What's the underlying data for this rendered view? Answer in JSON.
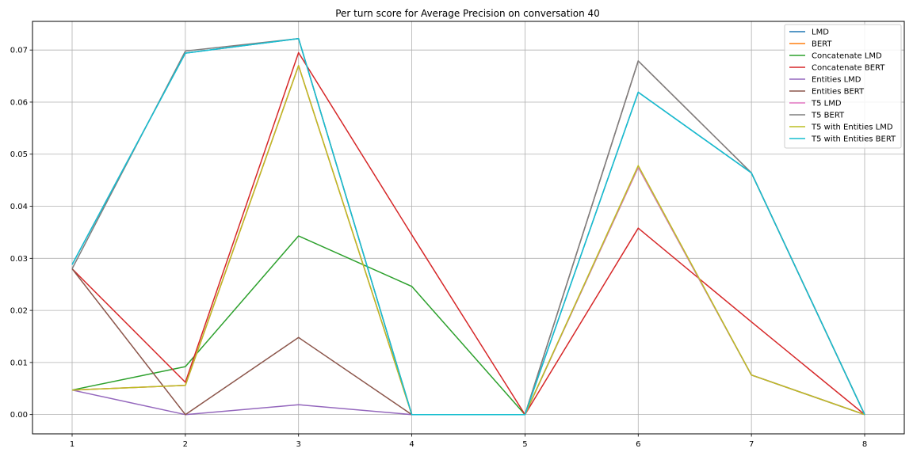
{
  "chart_data": {
    "type": "line",
    "title": "Per turn score for Average Precision on conversation 40",
    "xlabel": "",
    "ylabel": "",
    "x": [
      1,
      2,
      3,
      4,
      5,
      6,
      7,
      8
    ],
    "xlim": [
      0.65,
      8.35
    ],
    "ylim": [
      -0.0037,
      0.0755
    ],
    "x_ticks": [
      1,
      2,
      3,
      4,
      5,
      6,
      7,
      8
    ],
    "y_ticks": [
      0.0,
      0.01,
      0.02,
      0.03,
      0.04,
      0.05,
      0.06,
      0.07
    ],
    "y_tick_labels": [
      "0.00",
      "0.01",
      "0.02",
      "0.03",
      "0.04",
      "0.05",
      "0.06",
      "0.07"
    ],
    "grid": true,
    "legend_position": "top-right",
    "series": [
      {
        "name": "LMD",
        "color": "#1f77b4",
        "values": [
          0.0288,
          0.0694,
          0.0722,
          0.0,
          0.0,
          0.0619,
          0.0464,
          0.0
        ]
      },
      {
        "name": "BERT",
        "color": "#ff7f0e",
        "values": [
          0.0047,
          0.0056,
          0.067,
          0.0,
          0.0,
          0.0475,
          0.0076,
          0.0
        ]
      },
      {
        "name": "Concatenate LMD",
        "color": "#2ca02c",
        "values": [
          0.0047,
          0.0092,
          0.0343,
          0.0246,
          0.0,
          0.0475,
          0.0076,
          0.0
        ]
      },
      {
        "name": "Concatenate BERT",
        "color": "#d62728",
        "values": [
          0.028,
          0.0062,
          0.0695,
          0.0345,
          0.0,
          0.0358,
          0.0178,
          0.0
        ]
      },
      {
        "name": "Entities LMD",
        "color": "#9467bd",
        "values": [
          0.0047,
          0.0,
          0.0019,
          0.0,
          0.0,
          0.0475,
          0.0076,
          0.0
        ]
      },
      {
        "name": "Entities BERT",
        "color": "#8c564b",
        "values": [
          0.028,
          0.0,
          0.0148,
          0.0,
          0.0,
          0.0679,
          0.0464,
          0.0
        ]
      },
      {
        "name": "T5 LMD",
        "color": "#e377c2",
        "values": [
          0.0047,
          0.0056,
          0.067,
          0.0,
          0.0,
          0.0475,
          0.0076,
          0.0
        ]
      },
      {
        "name": "T5 BERT",
        "color": "#7f7f7f",
        "values": [
          0.028,
          0.0698,
          0.0722,
          0.0,
          0.0,
          0.0679,
          0.0464,
          0.0
        ]
      },
      {
        "name": "T5 with Entities LMD",
        "color": "#bcbd22",
        "values": [
          0.0047,
          0.0056,
          0.067,
          0.0,
          0.0,
          0.0478,
          0.0076,
          0.0
        ]
      },
      {
        "name": "T5 with Entities BERT",
        "color": "#17becf",
        "values": [
          0.0288,
          0.0694,
          0.0722,
          0.0,
          0.0,
          0.0619,
          0.0464,
          0.0
        ]
      }
    ]
  }
}
